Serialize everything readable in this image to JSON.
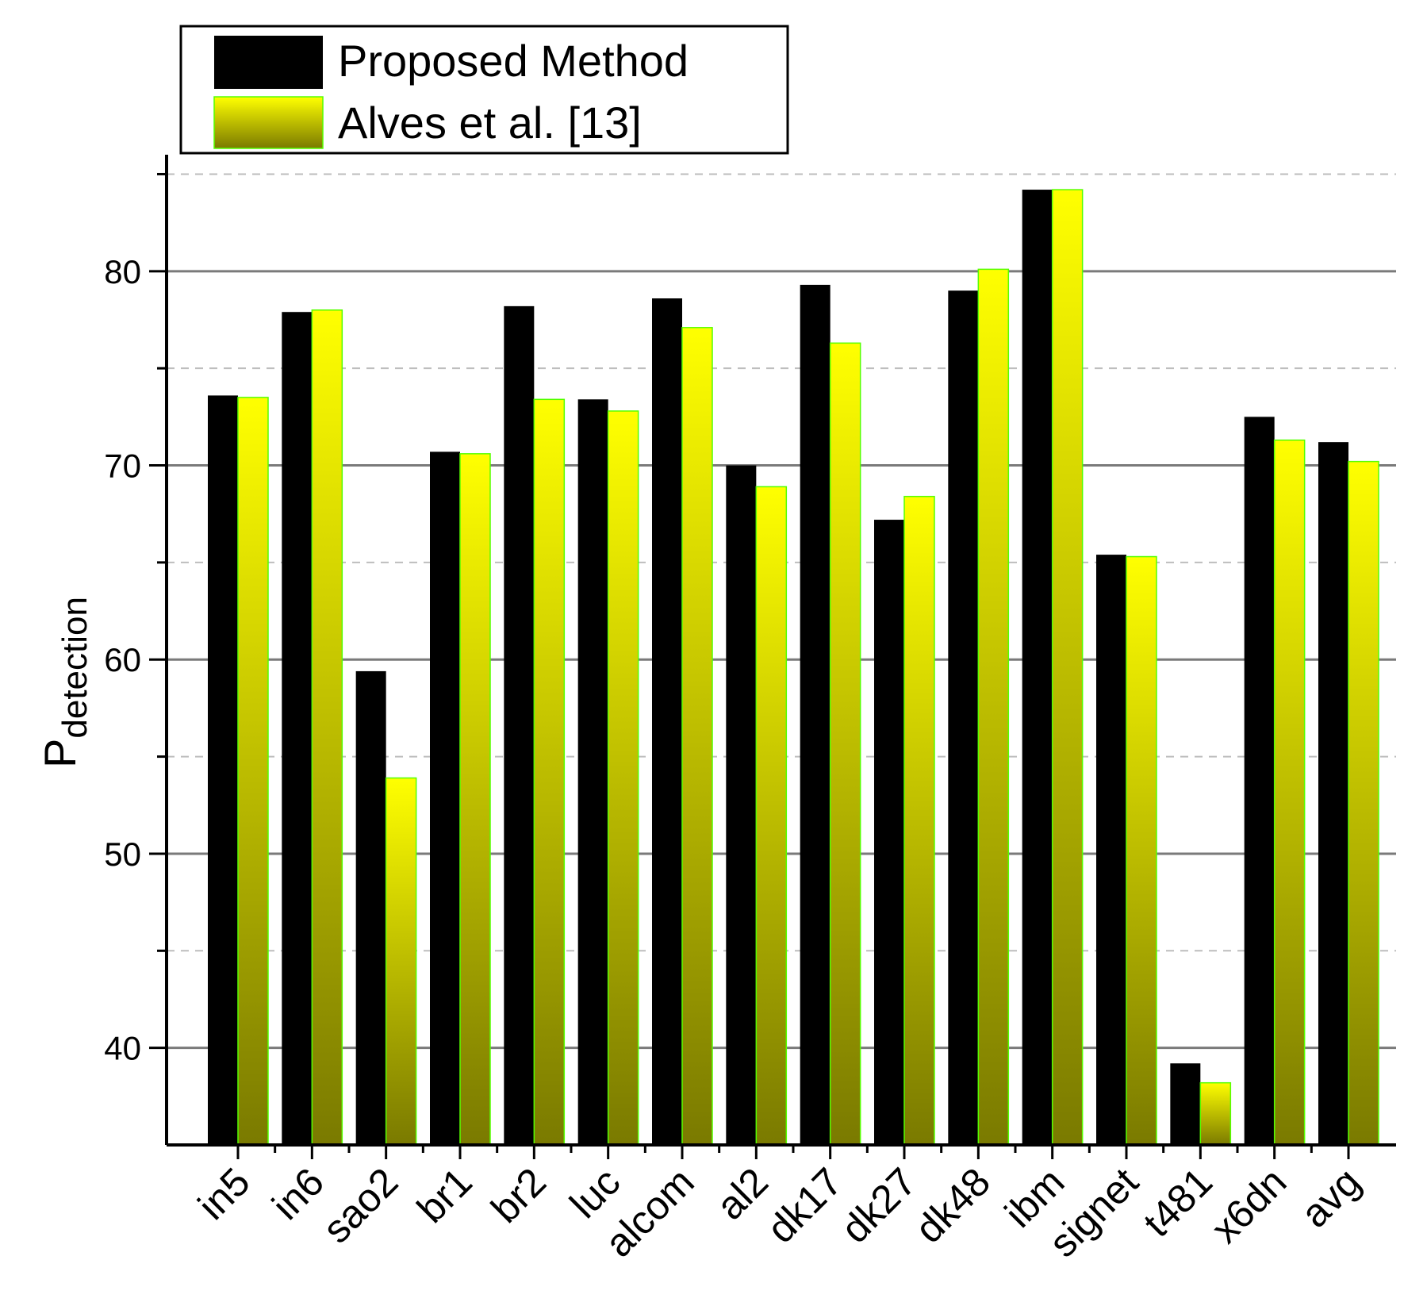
{
  "chart_data": {
    "type": "bar",
    "title": "",
    "xlabel": "",
    "ylabel": {
      "main": "P",
      "subscript": "detection"
    },
    "ylim": [
      35,
      86
    ],
    "yticks": [
      40,
      50,
      60,
      70,
      80
    ],
    "minor_yticks": [
      45,
      55,
      65,
      75,
      85
    ],
    "grid": "major solid, minor dashed",
    "legend_position": "top-left",
    "categories": [
      "in5",
      "in6",
      "sao2",
      "br1",
      "br2",
      "luc",
      "alcom",
      "al2",
      "dk17",
      "dk27",
      "dk48",
      "ibm",
      "signet",
      "t481",
      "x6dn",
      "avg"
    ],
    "series": [
      {
        "name": "Proposed Method",
        "color": "#000000",
        "values": [
          73.6,
          77.9,
          59.4,
          70.7,
          78.2,
          73.4,
          78.6,
          70.0,
          79.3,
          67.2,
          79.0,
          84.2,
          65.4,
          39.2,
          72.5,
          71.2
        ]
      },
      {
        "name": "Alves et al. [13]",
        "color": "#ffff00",
        "gradient_bottom": "#7a7a00",
        "border": "#55ff00",
        "values": [
          73.5,
          78.0,
          53.9,
          70.6,
          73.4,
          72.8,
          77.1,
          68.9,
          76.3,
          68.4,
          80.1,
          84.2,
          65.3,
          38.2,
          71.3,
          70.2
        ]
      }
    ]
  }
}
